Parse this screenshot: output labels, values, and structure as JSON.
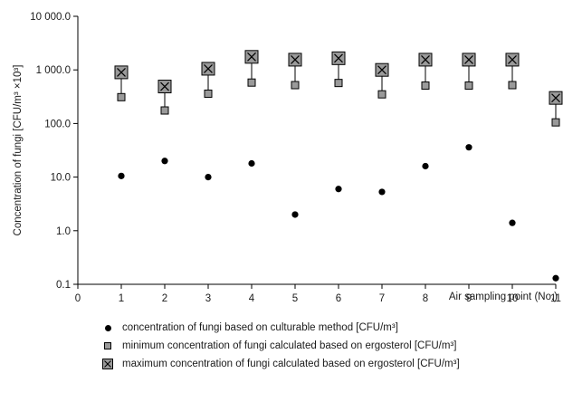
{
  "chart_data": {
    "type": "scatter",
    "ylabel": "Concentration of fungi [CFU/m³ ×10³]",
    "xlabel": "Air sampling point (No.)",
    "x_ticks": [
      "0",
      "1",
      "2",
      "3",
      "4",
      "5",
      "6",
      "7",
      "8",
      "9",
      "10",
      "11"
    ],
    "y_ticks": [
      "0.1",
      "1.0",
      "10.0",
      "100.0",
      "1 000.0",
      "10 000.0"
    ],
    "xlim": [
      0,
      11
    ],
    "ylim": [
      0.1,
      10000
    ],
    "y_scale": "log",
    "grid": false,
    "legend_position": "bottom",
    "x": [
      1,
      2,
      3,
      4,
      5,
      6,
      7,
      8,
      9,
      10,
      11
    ],
    "series": [
      {
        "name": "concentration of fungi based on culturable method [CFU/m³]",
        "marker": "dot",
        "color": "#000000",
        "values": [
          10.5,
          20,
          10,
          18,
          2.0,
          6.0,
          5.3,
          16,
          36,
          1.4,
          0.13
        ]
      },
      {
        "name": "minimum concentration of fungi calculated based on ergosterol [CFU/m³]",
        "marker": "square",
        "color": "#9a9a9a",
        "values": [
          310,
          175,
          360,
          580,
          520,
          570,
          350,
          510,
          510,
          520,
          105
        ]
      },
      {
        "name": "maximum concentration of fungi calculated based on ergosterol [CFU/m³]",
        "marker": "boxed-x",
        "color": "#9a9a9a",
        "values": [
          900,
          490,
          1050,
          1750,
          1550,
          1650,
          1000,
          1550,
          1550,
          1550,
          300
        ]
      }
    ]
  }
}
